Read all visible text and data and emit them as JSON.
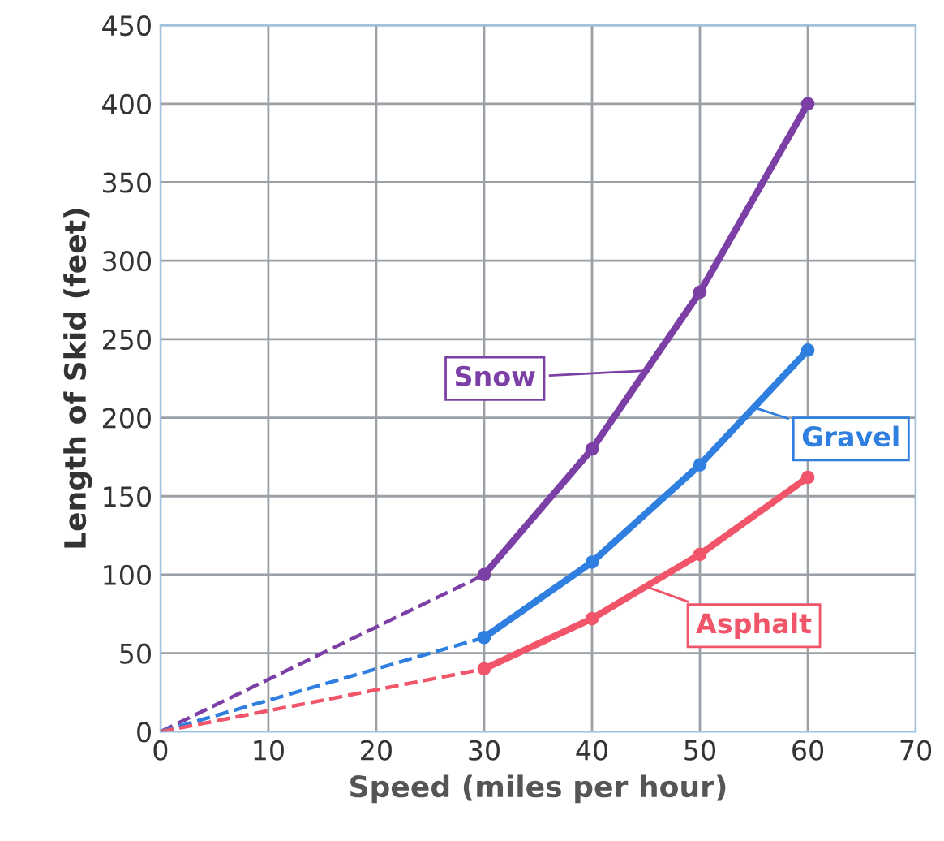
{
  "chart_data": {
    "type": "line",
    "xlabel": "Speed (miles per hour)",
    "ylabel": "Length of Skid (feet)",
    "xlim": [
      0,
      70
    ],
    "xticks": [
      0,
      10,
      20,
      30,
      40,
      50,
      60,
      70
    ],
    "ylim": [
      0,
      450
    ],
    "yticks": [
      0,
      50,
      100,
      150,
      200,
      250,
      300,
      350,
      400,
      450
    ],
    "grid": true,
    "marker": "circle",
    "series": [
      {
        "name": "Snow",
        "color": "#7b3fa6",
        "x": [
          30,
          40,
          50,
          60
        ],
        "values": [
          100,
          180,
          280,
          400
        ],
        "line_style": "solid"
      },
      {
        "name": "Gravel",
        "color": "#2f7fe0",
        "x": [
          30,
          40,
          50,
          60
        ],
        "values": [
          60,
          108,
          170,
          243
        ],
        "line_style": "solid"
      },
      {
        "name": "Asphalt",
        "color": "#f0556a",
        "x": [
          30,
          40,
          50,
          60
        ],
        "values": [
          40,
          72,
          113,
          162
        ],
        "line_style": "solid"
      },
      {
        "color": "#7b3fa6",
        "x": [
          0,
          30
        ],
        "values": [
          0,
          100
        ],
        "line_style": "dashed",
        "marker": "none"
      },
      {
        "color": "#2f7fe0",
        "x": [
          0,
          30
        ],
        "values": [
          0,
          60
        ],
        "line_style": "dashed",
        "marker": "none"
      },
      {
        "color": "#f0556a",
        "x": [
          0,
          30
        ],
        "values": [
          0,
          40
        ],
        "line_style": "dashed",
        "marker": "none"
      }
    ]
  }
}
